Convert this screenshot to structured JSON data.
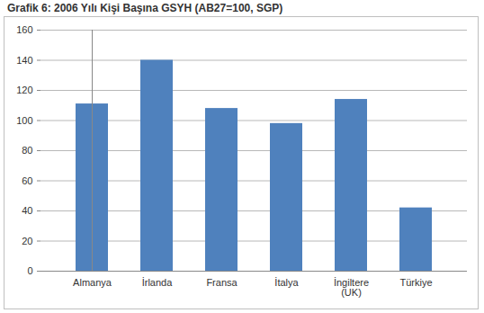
{
  "chart_data": {
    "type": "bar",
    "title": "Grafik 6: 2006 Yılı Kişi Başına GSYH (AB27=100, SGP)",
    "categories": [
      "Almanya",
      "İrlanda",
      "Fransa",
      "İtalya",
      "İngiltere (UK)",
      "Türkiye"
    ],
    "values": [
      111,
      140,
      108,
      98,
      114,
      42
    ],
    "color": "#4f81bd",
    "ylim": [
      0,
      160
    ],
    "yticks": [
      0,
      20,
      40,
      60,
      80,
      100,
      120,
      140,
      160
    ],
    "grid": true
  }
}
